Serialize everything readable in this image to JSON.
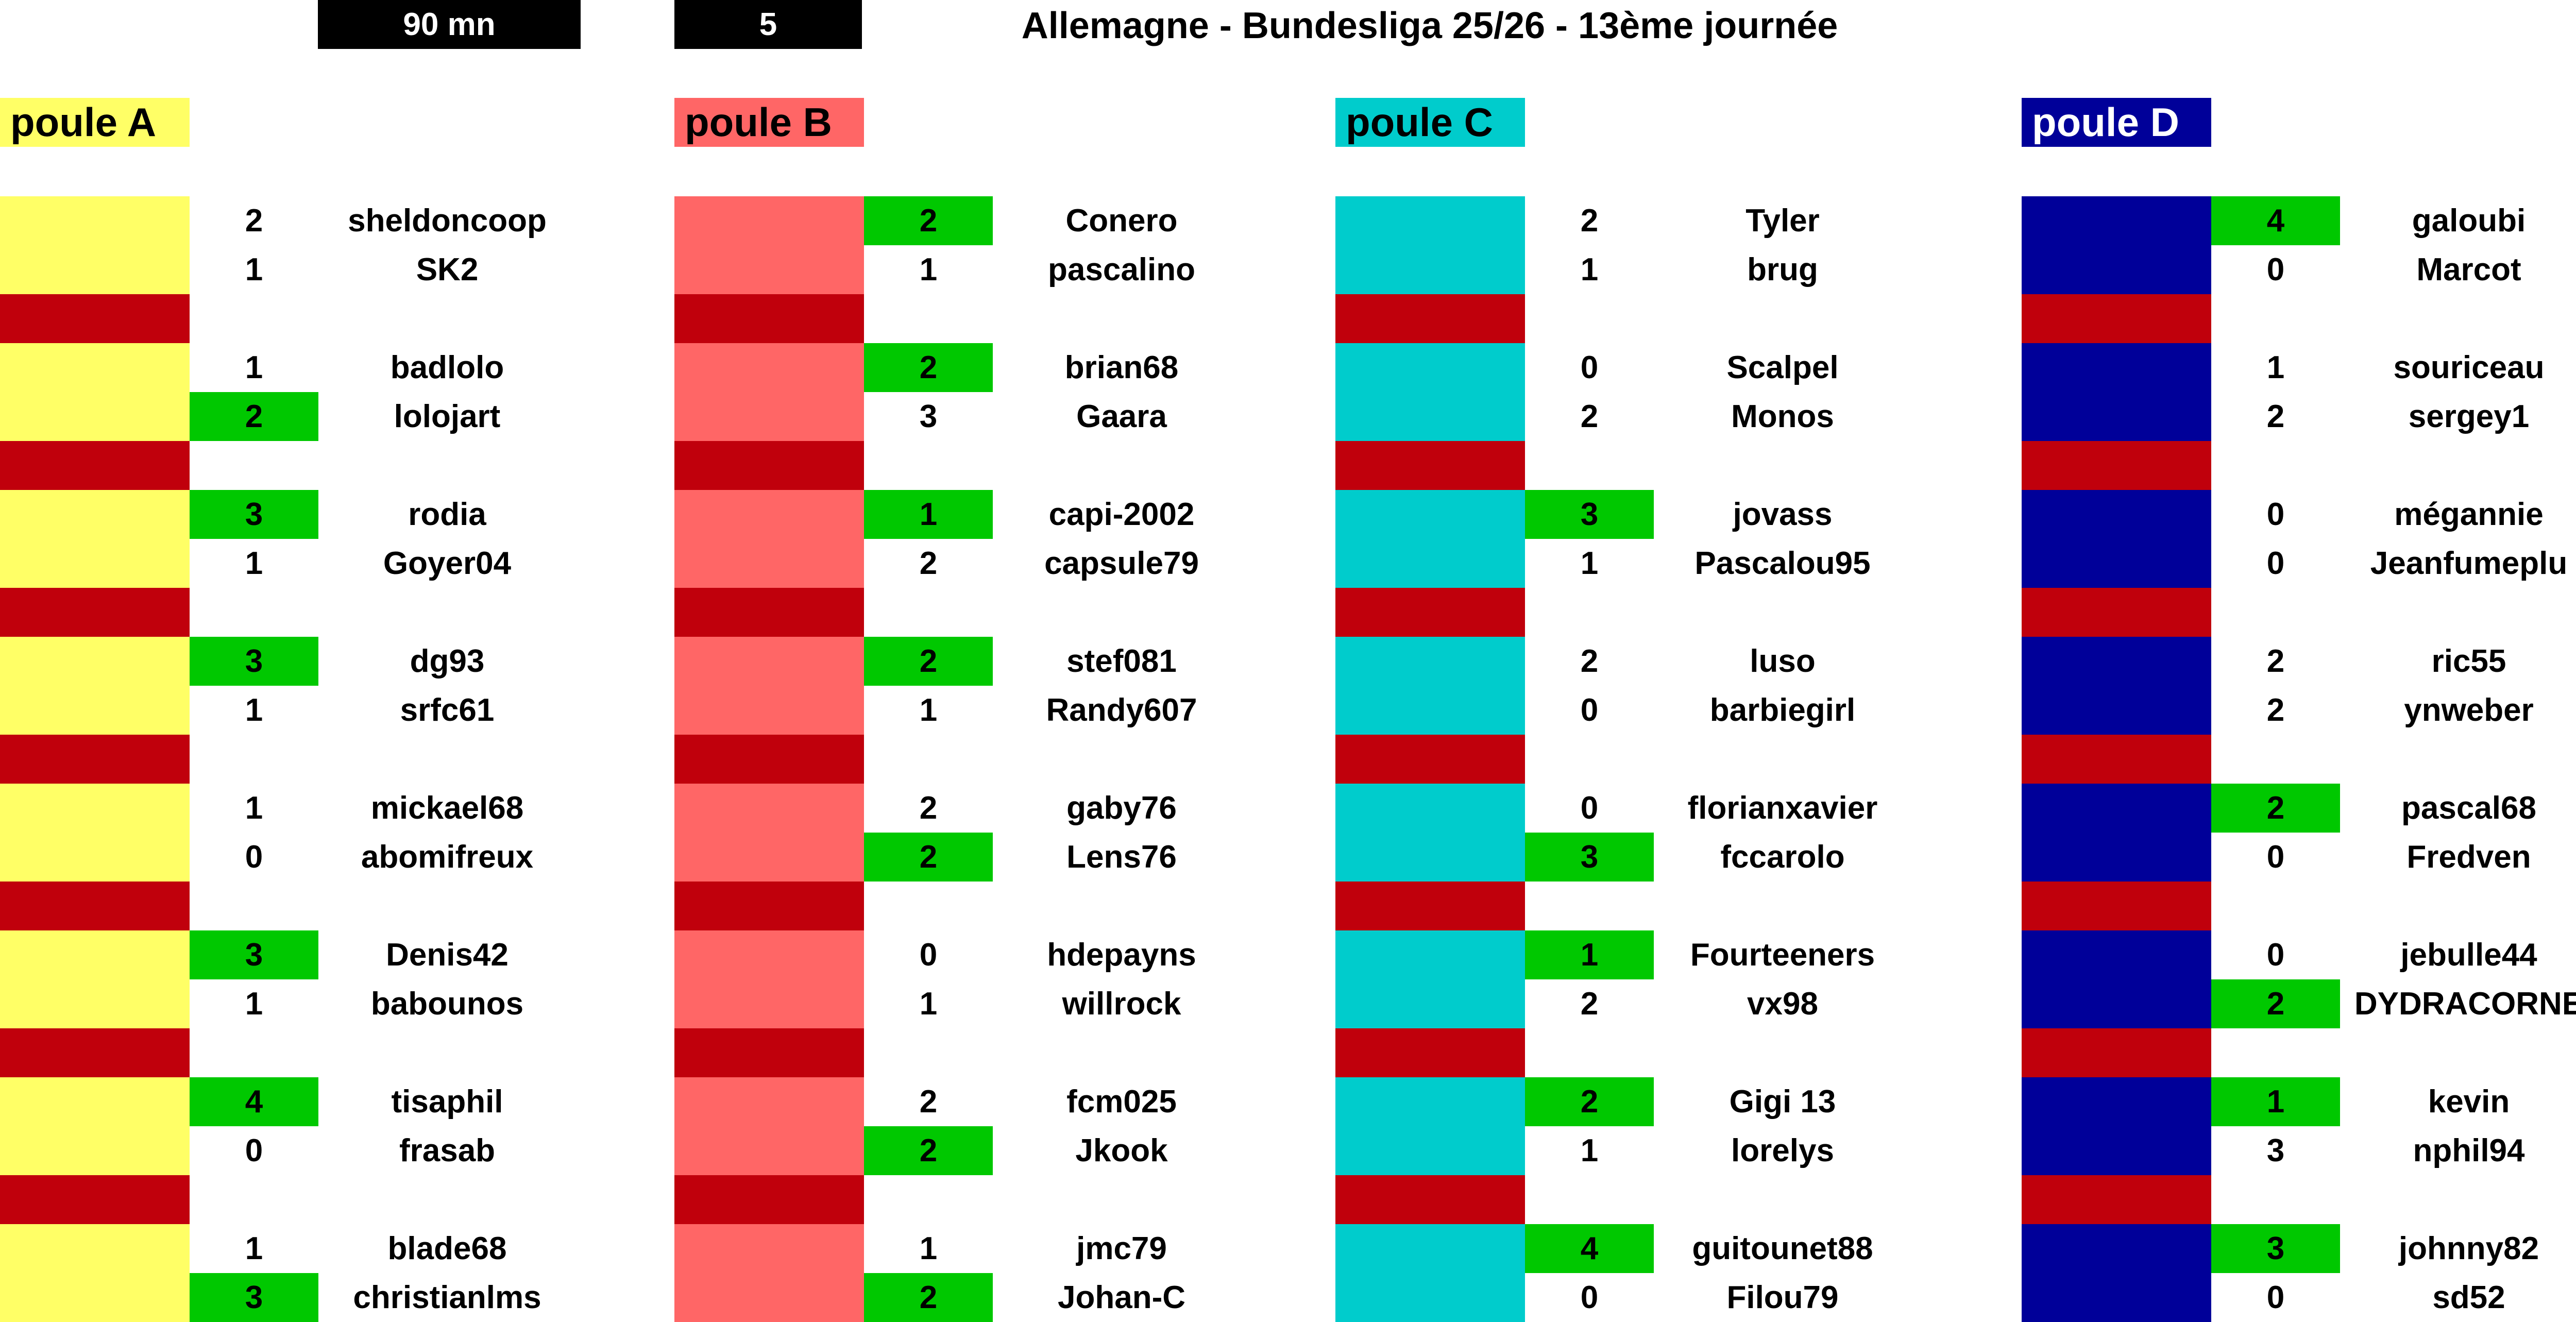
{
  "header": {
    "timer": "90 mn",
    "round_count": "5",
    "title": "Allemagne - Bundesliga 25/26 - 13ème journée"
  },
  "colors": {
    "poule_A": "#ffff66",
    "poule_B": "#ff6666",
    "poule_C": "#00cccc",
    "poule_D": "#000099",
    "separator": "#c0000c",
    "win": "#00c800"
  },
  "groups": [
    {
      "label": "poule A",
      "color": "#ffff66",
      "label_text_color": "#000000",
      "matches": [
        [
          {
            "score": "2",
            "name": "sheldoncoop",
            "win": false
          },
          {
            "score": "1",
            "name": "SK2",
            "win": false
          }
        ],
        [
          {
            "score": "1",
            "name": "badlolo",
            "win": false
          },
          {
            "score": "2",
            "name": "lolojart",
            "win": true
          }
        ],
        [
          {
            "score": "3",
            "name": "rodia",
            "win": true
          },
          {
            "score": "1",
            "name": "Goyer04",
            "win": false
          }
        ],
        [
          {
            "score": "3",
            "name": "dg93",
            "win": true
          },
          {
            "score": "1",
            "name": "srfc61",
            "win": false
          }
        ],
        [
          {
            "score": "1",
            "name": "mickael68",
            "win": false
          },
          {
            "score": "0",
            "name": "abomifreux",
            "win": false
          }
        ],
        [
          {
            "score": "3",
            "name": "Denis42",
            "win": true
          },
          {
            "score": "1",
            "name": "babounos",
            "win": false
          }
        ],
        [
          {
            "score": "4",
            "name": "tisaphil",
            "win": true
          },
          {
            "score": "0",
            "name": "frasab",
            "win": false
          }
        ],
        [
          {
            "score": "1",
            "name": "blade68",
            "win": false
          },
          {
            "score": "3",
            "name": "christianlms",
            "win": true
          }
        ]
      ]
    },
    {
      "label": "poule B",
      "color": "#ff6666",
      "label_text_color": "#000000",
      "matches": [
        [
          {
            "score": "2",
            "name": "Conero",
            "win": true
          },
          {
            "score": "1",
            "name": "pascalino",
            "win": false
          }
        ],
        [
          {
            "score": "2",
            "name": "brian68",
            "win": true
          },
          {
            "score": "3",
            "name": "Gaara",
            "win": false
          }
        ],
        [
          {
            "score": "1",
            "name": "capi-2002",
            "win": true
          },
          {
            "score": "2",
            "name": "capsule79",
            "win": false
          }
        ],
        [
          {
            "score": "2",
            "name": "stef081",
            "win": true
          },
          {
            "score": "1",
            "name": "Randy607",
            "win": false
          }
        ],
        [
          {
            "score": "2",
            "name": "gaby76",
            "win": false
          },
          {
            "score": "2",
            "name": "Lens76",
            "win": true
          }
        ],
        [
          {
            "score": "0",
            "name": "hdepayns",
            "win": false
          },
          {
            "score": "1",
            "name": "willrock",
            "win": false
          }
        ],
        [
          {
            "score": "2",
            "name": "fcm025",
            "win": false
          },
          {
            "score": "2",
            "name": "Jkook",
            "win": true
          }
        ],
        [
          {
            "score": "1",
            "name": "jmc79",
            "win": false
          },
          {
            "score": "2",
            "name": "Johan-C",
            "win": true
          }
        ]
      ]
    },
    {
      "label": "poule C",
      "color": "#00cccc",
      "label_text_color": "#000000",
      "matches": [
        [
          {
            "score": "2",
            "name": "Tyler",
            "win": false
          },
          {
            "score": "1",
            "name": "brug",
            "win": false
          }
        ],
        [
          {
            "score": "0",
            "name": "Scalpel",
            "win": false
          },
          {
            "score": "2",
            "name": "Monos",
            "win": false
          }
        ],
        [
          {
            "score": "3",
            "name": "jovass",
            "win": true
          },
          {
            "score": "1",
            "name": "Pascalou95",
            "win": false
          }
        ],
        [
          {
            "score": "2",
            "name": "luso",
            "win": false
          },
          {
            "score": "0",
            "name": "barbiegirl",
            "win": false
          }
        ],
        [
          {
            "score": "0",
            "name": "florianxavier",
            "win": false
          },
          {
            "score": "3",
            "name": "fccarolo",
            "win": true
          }
        ],
        [
          {
            "score": "1",
            "name": "Fourteeners",
            "win": true
          },
          {
            "score": "2",
            "name": "vx98",
            "win": false
          }
        ],
        [
          {
            "score": "2",
            "name": "Gigi 13",
            "win": true
          },
          {
            "score": "1",
            "name": "lorelys",
            "win": false
          }
        ],
        [
          {
            "score": "4",
            "name": "guitounet88",
            "win": true
          },
          {
            "score": "0",
            "name": "Filou79",
            "win": false
          }
        ]
      ]
    },
    {
      "label": "poule D",
      "color": "#000099",
      "label_text_color": "#ffffff",
      "matches": [
        [
          {
            "score": "4",
            "name": "galoubi",
            "win": true
          },
          {
            "score": "0",
            "name": "Marcot",
            "win": false
          }
        ],
        [
          {
            "score": "1",
            "name": "souriceau",
            "win": false
          },
          {
            "score": "2",
            "name": "sergey1",
            "win": false
          }
        ],
        [
          {
            "score": "0",
            "name": "mégannie",
            "win": false
          },
          {
            "score": "0",
            "name": "Jeanfumeplu",
            "win": false
          }
        ],
        [
          {
            "score": "2",
            "name": "ric55",
            "win": false
          },
          {
            "score": "2",
            "name": "ynweber",
            "win": false
          }
        ],
        [
          {
            "score": "2",
            "name": "pascal68",
            "win": true
          },
          {
            "score": "0",
            "name": "Fredven",
            "win": false
          }
        ],
        [
          {
            "score": "0",
            "name": "jebulle44",
            "win": false
          },
          {
            "score": "2",
            "name": "DYDRACORNE",
            "win": true
          }
        ],
        [
          {
            "score": "1",
            "name": "kevin",
            "win": true
          },
          {
            "score": "3",
            "name": "nphil94",
            "win": false
          }
        ],
        [
          {
            "score": "3",
            "name": "johnny82",
            "win": true
          },
          {
            "score": "0",
            "name": "sd52",
            "win": false
          }
        ]
      ]
    }
  ]
}
